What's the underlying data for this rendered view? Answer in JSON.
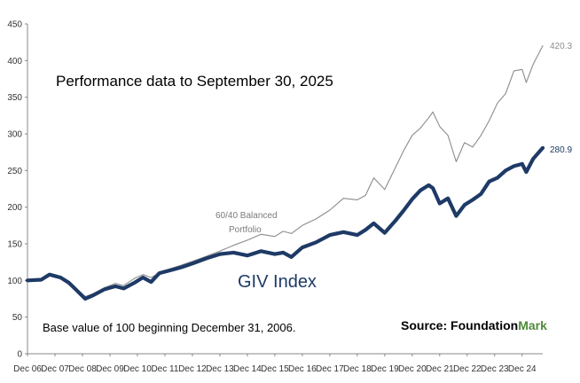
{
  "chart_data": {
    "type": "line",
    "title": "Performance data to September 30, 2025",
    "note": "Base value of 100 beginning December 31, 2006.",
    "source": {
      "prefix": "Source: Foundation",
      "suffix": "Mark",
      "suffix_color": "#4e8a3a"
    },
    "ylim": [
      0,
      450
    ],
    "yticks": [
      "0",
      "50",
      "100",
      "150",
      "200",
      "250",
      "300",
      "350",
      "400",
      "450"
    ],
    "x_labels": [
      "Dec 06",
      "Dec 07",
      "Dec 08",
      "Dec 09",
      "Dec 10",
      "Dec 11",
      "Dec 12",
      "Dec 13",
      "Dec 14",
      "Dec 15",
      "Dec 16",
      "Dec 17",
      "Dec 18",
      "Dec 19",
      "Dec 20",
      "Dec 21",
      "Dec 22",
      "Dec 23",
      "Dec 24"
    ],
    "x_range_years": [
      0,
      18.75
    ],
    "grid": false,
    "series": [
      {
        "name": "60/40 Balanced Portfolio",
        "color": "#8c8c8c",
        "end_label": "420.3",
        "points": [
          [
            0,
            100
          ],
          [
            0.5,
            103
          ],
          [
            0.8,
            109
          ],
          [
            1.2,
            104
          ],
          [
            1.5,
            98
          ],
          [
            1.75,
            88
          ],
          [
            2.1,
            78
          ],
          [
            2.4,
            82
          ],
          [
            2.8,
            90
          ],
          [
            3.2,
            96
          ],
          [
            3.5,
            93
          ],
          [
            3.9,
            103
          ],
          [
            4.2,
            108
          ],
          [
            4.5,
            104
          ],
          [
            4.8,
            110
          ],
          [
            5.2,
            116
          ],
          [
            5.6,
            121
          ],
          [
            6.0,
            126
          ],
          [
            6.5,
            133
          ],
          [
            7.0,
            140
          ],
          [
            7.5,
            148
          ],
          [
            8.0,
            155
          ],
          [
            8.5,
            163
          ],
          [
            9.0,
            160
          ],
          [
            9.3,
            167
          ],
          [
            9.6,
            164
          ],
          [
            10.0,
            175
          ],
          [
            10.5,
            184
          ],
          [
            11.0,
            196
          ],
          [
            11.5,
            212
          ],
          [
            12.0,
            210
          ],
          [
            12.3,
            216
          ],
          [
            12.6,
            240
          ],
          [
            13.0,
            224
          ],
          [
            13.4,
            255
          ],
          [
            13.7,
            278
          ],
          [
            14.0,
            298
          ],
          [
            14.3,
            308
          ],
          [
            14.6,
            322
          ],
          [
            14.75,
            330
          ],
          [
            15.0,
            310
          ],
          [
            15.3,
            298
          ],
          [
            15.6,
            262
          ],
          [
            15.9,
            288
          ],
          [
            16.2,
            282
          ],
          [
            16.5,
            298
          ],
          [
            16.8,
            318
          ],
          [
            17.1,
            342
          ],
          [
            17.4,
            355
          ],
          [
            17.7,
            386
          ],
          [
            18.0,
            388
          ],
          [
            18.15,
            370
          ],
          [
            18.4,
            395
          ],
          [
            18.75,
            420.3
          ]
        ]
      },
      {
        "name": "GIV Index",
        "color": "#1e3a66",
        "end_label": "280.9",
        "points": [
          [
            0,
            100
          ],
          [
            0.5,
            101
          ],
          [
            0.8,
            108
          ],
          [
            1.2,
            104
          ],
          [
            1.5,
            97
          ],
          [
            1.75,
            88
          ],
          [
            2.1,
            75
          ],
          [
            2.4,
            80
          ],
          [
            2.8,
            88
          ],
          [
            3.2,
            92
          ],
          [
            3.5,
            89
          ],
          [
            3.9,
            97
          ],
          [
            4.2,
            104
          ],
          [
            4.5,
            98
          ],
          [
            4.8,
            110
          ],
          [
            5.2,
            114
          ],
          [
            5.6,
            118
          ],
          [
            6.0,
            123
          ],
          [
            6.5,
            130
          ],
          [
            7.0,
            136
          ],
          [
            7.5,
            138
          ],
          [
            8.0,
            134
          ],
          [
            8.5,
            140
          ],
          [
            9.0,
            136
          ],
          [
            9.3,
            138
          ],
          [
            9.6,
            132
          ],
          [
            10.0,
            145
          ],
          [
            10.5,
            152
          ],
          [
            11.0,
            162
          ],
          [
            11.5,
            166
          ],
          [
            12.0,
            162
          ],
          [
            12.3,
            169
          ],
          [
            12.6,
            178
          ],
          [
            13.0,
            165
          ],
          [
            13.4,
            182
          ],
          [
            13.7,
            196
          ],
          [
            14.0,
            211
          ],
          [
            14.3,
            223
          ],
          [
            14.6,
            230
          ],
          [
            14.75,
            226
          ],
          [
            15.0,
            205
          ],
          [
            15.3,
            212
          ],
          [
            15.6,
            188
          ],
          [
            15.9,
            203
          ],
          [
            16.2,
            210
          ],
          [
            16.5,
            218
          ],
          [
            16.8,
            235
          ],
          [
            17.1,
            240
          ],
          [
            17.4,
            250
          ],
          [
            17.7,
            256
          ],
          [
            18.0,
            259
          ],
          [
            18.15,
            248
          ],
          [
            18.4,
            266
          ],
          [
            18.75,
            280.9
          ]
        ]
      }
    ]
  }
}
